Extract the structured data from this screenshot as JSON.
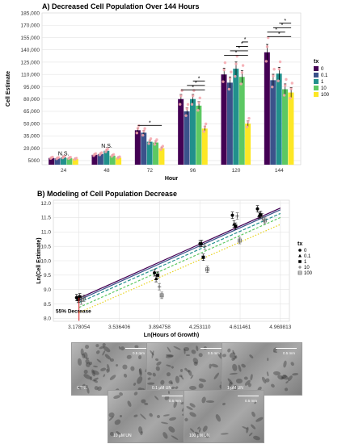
{
  "chart_data": [
    {
      "type": "bar",
      "title": "A) Decreased Cell Population Over 144 Hours",
      "xlabel": "Hour",
      "ylabel": "Cell Estimate",
      "categories": [
        "24",
        "48",
        "72",
        "96",
        "120",
        "144"
      ],
      "ylim": [
        0,
        185000
      ],
      "yticks": [
        "5000",
        "20,000",
        "35,000",
        "50,000",
        "65,000",
        "80,000",
        "95,000",
        "110,000",
        "125,000",
        "140,000",
        "155,000",
        "170,000",
        "185,000"
      ],
      "legend_title": "tx",
      "legend_position": "right",
      "series": [
        {
          "name": "0",
          "color": "#440154",
          "values": [
            8200,
            12000,
            42000,
            80000,
            110000,
            137000
          ]
        },
        {
          "name": "0.1",
          "color": "#3b528b",
          "values": [
            7800,
            13000,
            39000,
            65000,
            100000,
            103000
          ]
        },
        {
          "name": "1",
          "color": "#21908c",
          "values": [
            9000,
            17000,
            28000,
            80000,
            117000,
            111000
          ]
        },
        {
          "name": "10",
          "color": "#5dc863",
          "values": [
            8100,
            11000,
            27000,
            72000,
            107000,
            92000
          ]
        },
        {
          "name": "100",
          "color": "#fde725",
          "values": [
            7000,
            8500,
            20000,
            44000,
            50000,
            88000
          ]
        }
      ],
      "annotations": [
        "N.S.",
        "N.S.",
        "*"
      ],
      "grid": true
    },
    {
      "type": "scatter",
      "title": "B) Modeling of Cell Population Decrease",
      "xlabel": "Ln(Hours of Growth)",
      "ylabel": "Ln(Cell Estimate)",
      "xticks": [
        "3.178054",
        "3.536406",
        "3.894758",
        "4.253110",
        "4.611461",
        "4.969813"
      ],
      "xlim": [
        2.95,
        5.05
      ],
      "yticks": [
        "8.0",
        "8.5",
        "9.0",
        "9.5",
        "10.0",
        "10.5",
        "11.0",
        "11.5",
        "12.0"
      ],
      "ylim": [
        7.9,
        12.1
      ],
      "legend_title": "tx",
      "legend_position": "right",
      "annotation": "55% Decrease",
      "series": [
        {
          "name": "0",
          "color": "#000000",
          "x": [
            3.178054,
            3.871201,
            4.276666,
            4.564348,
            4.787492
          ],
          "y": [
            8.72,
            9.58,
            10.59,
            11.58,
            11.8
          ]
        },
        {
          "name": "0.1",
          "color": "#000000",
          "x": [
            3.178054,
            3.871201,
            4.276666,
            4.564348,
            4.787492
          ],
          "y": [
            8.66,
            9.38,
            10.6,
            11.27,
            11.57
          ]
        },
        {
          "name": "1",
          "color": "#000000",
          "x": [
            3.178054,
            3.871201,
            4.276666,
            4.564348,
            4.787492
          ],
          "y": [
            8.75,
            9.5,
            10.12,
            11.2,
            11.6
          ]
        },
        {
          "name": "10",
          "color": "#555555",
          "x": [
            3.178054,
            3.871201,
            4.276666,
            4.564348,
            4.787492
          ],
          "y": [
            8.6,
            9.1,
            10.5,
            11.55,
            11.52
          ]
        },
        {
          "name": "100",
          "color": "#555555",
          "x": [
            3.178054,
            3.871201,
            4.276666,
            4.564348,
            4.787492
          ],
          "y": [
            8.7,
            8.8,
            9.7,
            10.7,
            11.4
          ]
        }
      ],
      "fit_lines": [
        {
          "name": "0",
          "color": "#440154",
          "dash": "",
          "x": [
            3.178054,
            4.969813
          ],
          "y": [
            8.7,
            11.83
          ]
        },
        {
          "name": "0.1",
          "color": "#3b528b",
          "dash": "",
          "x": [
            3.178054,
            4.969813
          ],
          "y": [
            8.64,
            11.77
          ]
        },
        {
          "name": "1",
          "color": "#21908c",
          "dash": "4,2",
          "x": [
            3.178054,
            4.969813
          ],
          "y": [
            8.55,
            11.64
          ]
        },
        {
          "name": "10",
          "color": "#5dc863",
          "dash": "3,2",
          "x": [
            3.178054,
            4.969813
          ],
          "y": [
            8.38,
            11.5
          ]
        },
        {
          "name": "100",
          "color": "#e8d21c",
          "dash": "1.5,2",
          "x": [
            3.178054,
            4.969813
          ],
          "y": [
            8.2,
            11.26
          ]
        }
      ]
    }
  ],
  "photos": [
    {
      "label": "CTRL",
      "scale": "0.5 mm"
    },
    {
      "label": "0.1 μM UN",
      "scale": "0.5 mm"
    },
    {
      "label": "1 μM UN",
      "scale": "0.5 mm"
    },
    {
      "label": "10 μM UN",
      "scale": "0.5 mm"
    },
    {
      "label": "100 μM UN",
      "scale": "0.5 mm"
    }
  ]
}
